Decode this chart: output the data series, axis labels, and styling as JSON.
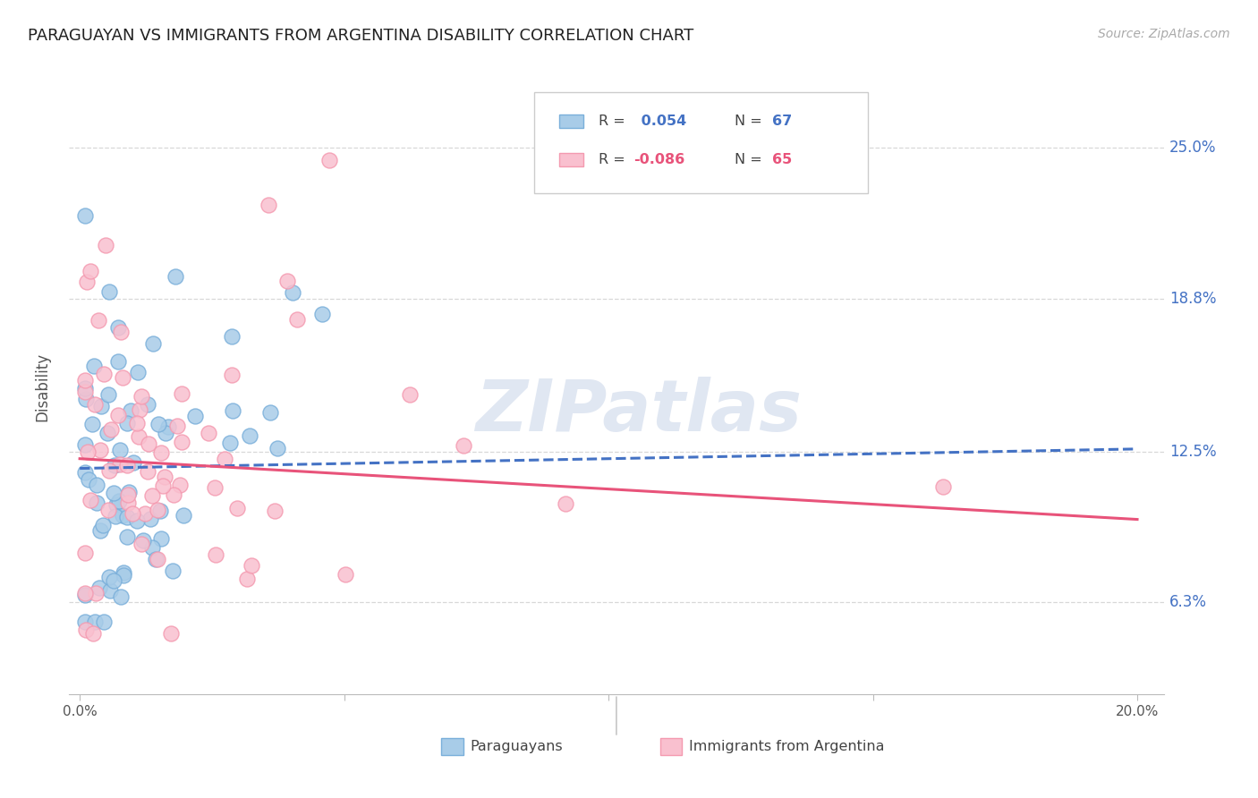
{
  "title": "PARAGUAYAN VS IMMIGRANTS FROM ARGENTINA DISABILITY CORRELATION CHART",
  "source": "Source: ZipAtlas.com",
  "ylabel": "Disability",
  "ytick_labels": [
    "6.3%",
    "12.5%",
    "18.8%",
    "25.0%"
  ],
  "ytick_values": [
    0.063,
    0.125,
    0.188,
    0.25
  ],
  "xlim": [
    -0.002,
    0.205
  ],
  "ylim": [
    0.025,
    0.278
  ],
  "blue_R": 0.054,
  "blue_N": 67,
  "pink_R": -0.086,
  "pink_N": 65,
  "blue_color": "#a8cce8",
  "pink_color": "#f9c0cf",
  "blue_edge_color": "#7aafda",
  "pink_edge_color": "#f49ab0",
  "blue_line_color": "#4472c4",
  "pink_line_color": "#e8537a",
  "legend_label_blue": "Paraguayans",
  "legend_label_pink": "Immigrants from Argentina",
  "watermark": "ZIPatlas",
  "right_label_color": "#4472c4",
  "blue_line_start_y": 0.118,
  "blue_line_end_y": 0.126,
  "pink_line_start_y": 0.122,
  "pink_line_end_y": 0.097
}
